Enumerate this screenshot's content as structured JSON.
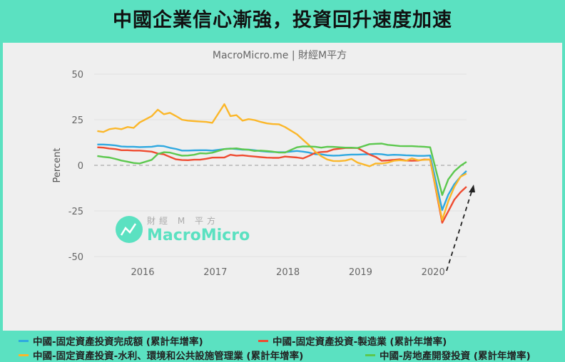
{
  "title": "中國企業信心漸強，投資回升速度加速",
  "chart_data": {
    "type": "line",
    "subtitle": "MacroMicro.me | 財經M平方",
    "ylabel": "Percent",
    "xlabel": "",
    "ylim": [
      -50,
      50
    ],
    "yticks": [
      "50",
      "25",
      "0",
      "-25",
      "-50"
    ],
    "ytick_values": [
      50,
      25,
      0,
      -25,
      -50
    ],
    "xticks": [
      "2016",
      "2017",
      "2018",
      "2019",
      "2020"
    ],
    "grid": "horizontal",
    "zero_line": "dashed",
    "legend_position": "bottom",
    "annotation": "dashed upward arrow indicating recovery",
    "x": [
      "2015-05",
      "2015-06",
      "2015-07",
      "2015-08",
      "2015-09",
      "2015-10",
      "2015-11",
      "2015-12",
      "2016-02",
      "2016-03",
      "2016-04",
      "2016-05",
      "2016-06",
      "2016-07",
      "2016-08",
      "2016-09",
      "2016-10",
      "2016-11",
      "2016-12",
      "2017-02",
      "2017-03",
      "2017-04",
      "2017-05",
      "2017-06",
      "2017-07",
      "2017-08",
      "2017-09",
      "2017-10",
      "2017-11",
      "2017-12",
      "2018-02",
      "2018-03",
      "2018-04",
      "2018-05",
      "2018-06",
      "2018-07",
      "2018-08",
      "2018-09",
      "2018-10",
      "2018-11",
      "2018-12",
      "2019-02",
      "2019-03",
      "2019-04",
      "2019-05",
      "2019-06",
      "2019-07",
      "2019-08",
      "2019-09",
      "2019-10",
      "2019-11",
      "2019-12",
      "2020-02",
      "2020-03",
      "2020-04",
      "2020-05",
      "2020-06"
    ],
    "series": [
      {
        "name": "中國-固定資產投資完成額 (累計年增率)",
        "color": "#2ea8e0",
        "values": [
          11.4,
          11.4,
          11.2,
          10.9,
          10.3,
          10.2,
          10.2,
          10.0,
          10.2,
          10.7,
          10.5,
          9.6,
          9.0,
          8.1,
          8.1,
          8.2,
          8.3,
          8.3,
          8.1,
          8.9,
          9.2,
          8.9,
          8.6,
          8.6,
          8.3,
          7.8,
          7.5,
          7.3,
          7.2,
          7.2,
          7.9,
          7.5,
          7.0,
          6.1,
          6.0,
          5.5,
          5.3,
          5.4,
          5.7,
          5.9,
          5.9,
          6.1,
          6.3,
          6.1,
          5.6,
          5.8,
          5.7,
          5.5,
          5.4,
          5.2,
          5.2,
          5.4,
          -24.5,
          -16.1,
          -10.3,
          -6.3,
          -3.1
        ]
      },
      {
        "name": "中國-固定資產投資-製造業 (累計年增率)",
        "color": "#ef4b30",
        "values": [
          9.9,
          9.7,
          9.2,
          8.9,
          8.3,
          8.3,
          8.1,
          8.1,
          7.5,
          6.5,
          6.0,
          4.6,
          3.3,
          2.9,
          2.8,
          3.1,
          3.1,
          3.6,
          4.2,
          4.3,
          5.8,
          5.3,
          5.5,
          5.1,
          4.8,
          4.5,
          4.2,
          4.1,
          4.1,
          4.8,
          4.3,
          3.8,
          5.2,
          6.8,
          7.3,
          7.5,
          8.7,
          9.1,
          9.5,
          9.5,
          9.5,
          5.9,
          4.6,
          2.5,
          2.7,
          3.0,
          3.3,
          2.6,
          2.5,
          2.6,
          3.2,
          3.1,
          -31.5,
          -25.2,
          -18.8,
          -14.8,
          -11.7
        ]
      },
      {
        "name": "中國-固定資產投資-水利、環境和公共設施管理業 (累計年增率)",
        "color": "#fbb72a",
        "values": [
          18.8,
          18.3,
          19.8,
          20.3,
          19.8,
          21.0,
          20.5,
          23.5,
          27.0,
          30.5,
          28.0,
          28.8,
          27.0,
          25.0,
          24.5,
          24.2,
          24.0,
          23.8,
          23.3,
          33.5,
          27.0,
          27.5,
          24.5,
          25.3,
          24.8,
          23.8,
          23.0,
          22.6,
          22.5,
          21.0,
          17.0,
          14.0,
          11.0,
          7.5,
          5.0,
          3.2,
          2.4,
          2.3,
          2.6,
          3.5,
          1.5,
          -0.5,
          1.0,
          1.0,
          1.5,
          2.5,
          2.8,
          2.5,
          3.8,
          2.8,
          3.0,
          3.2,
          -30.0,
          -19.7,
          -11.8,
          -6.3,
          -4.5
        ]
      },
      {
        "name": "中國-房地產開發投資 (累計年增率)",
        "color": "#5cc84e",
        "values": [
          5.1,
          4.6,
          4.3,
          3.5,
          2.6,
          2.0,
          1.3,
          1.0,
          3.0,
          6.2,
          7.2,
          7.0,
          6.1,
          5.3,
          5.4,
          5.8,
          6.6,
          6.5,
          6.9,
          8.9,
          9.1,
          9.3,
          8.8,
          8.5,
          7.9,
          8.1,
          7.8,
          7.5,
          7.0,
          7.0,
          9.9,
          10.4,
          10.3,
          10.2,
          9.7,
          10.2,
          10.1,
          9.9,
          9.7,
          9.7,
          9.5,
          11.6,
          11.8,
          11.9,
          11.2,
          10.9,
          10.6,
          10.5,
          10.5,
          10.3,
          10.2,
          9.9,
          -16.3,
          -7.7,
          -3.3,
          -0.3,
          1.9
        ]
      }
    ]
  },
  "watermark": {
    "cn": "財經 M 平方",
    "en": "MacroMicro"
  }
}
